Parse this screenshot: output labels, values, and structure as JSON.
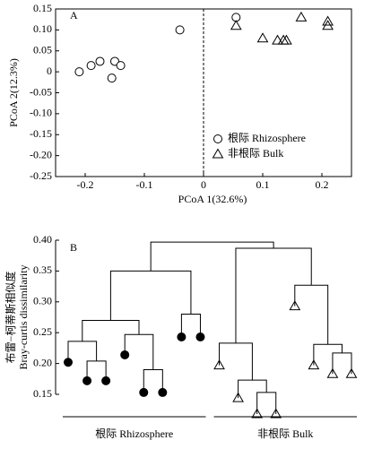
{
  "chart_data": [
    {
      "type": "scatter",
      "panel_label": "A",
      "x_label": "PCoA 1(32.6%)",
      "y_label": "PCoA 2(12.3%)",
      "xlim": [
        -0.25,
        0.25
      ],
      "ylim": [
        -0.25,
        0.15
      ],
      "xticks": [
        -0.2,
        -0.1,
        0,
        0.1,
        0.2
      ],
      "yticks": [
        0.15,
        {
          "value": 0.1,
          "label": "0.10"
        },
        0.05,
        0,
        -0.05,
        {
          "value": -0.1,
          "label": "-0.10"
        },
        -0.15,
        {
          "value": -0.2,
          "label": "-0.20"
        },
        -0.25
      ],
      "vline": 0,
      "legend": "bottom-right",
      "series": [
        {
          "name": "根际 Rhizosphere",
          "marker": "circle",
          "color": "#000000",
          "x": [
            -0.21,
            -0.19,
            -0.175,
            -0.15,
            -0.14,
            -0.155,
            -0.04,
            0.055
          ],
          "values": [
            0.0,
            0.015,
            0.025,
            0.025,
            0.015,
            -0.015,
            0.1,
            0.13
          ]
        },
        {
          "name": "非根际 Bulk",
          "marker": "triangle",
          "color": "#000000",
          "x": [
            0.055,
            0.1,
            0.125,
            0.135,
            0.14,
            0.165,
            0.21,
            0.21
          ],
          "values": [
            0.11,
            0.08,
            0.075,
            0.075,
            0.075,
            0.13,
            0.11,
            0.12
          ]
        }
      ]
    },
    {
      "type": "dendrogram",
      "panel_label": "B",
      "y_label": [
        "布雷−柯蒂斯相似度",
        "Bray-curtis dissimilarity"
      ],
      "ylim": [
        0.15,
        0.4
      ],
      "yticks": [
        {
          "value": 0.4,
          "label": "0.40"
        },
        0.35,
        {
          "value": 0.3,
          "label": "0.30"
        },
        0.25,
        {
          "value": 0.2,
          "label": "0.20"
        },
        0.15
      ],
      "groups": [
        {
          "name": "根际 Rhizosphere",
          "marker": "circle"
        },
        {
          "name": "非根际 Bulk",
          "marker": "triangle"
        }
      ],
      "leaf_groups": [
        0,
        0,
        0,
        0,
        0,
        0,
        0,
        0,
        1,
        1,
        1,
        1,
        1,
        1,
        1,
        1
      ],
      "leaf_heights": [
        0.202,
        0.172,
        0.172,
        0.214,
        0.153,
        0.153,
        0.243,
        0.243,
        0.197,
        0.144,
        0.118,
        0.118,
        0.293,
        0.197,
        0.183,
        0.183
      ],
      "merges": [
        [
          1,
          2,
          0.204
        ],
        [
          0,
          16,
          0.236
        ],
        [
          4,
          5,
          0.19
        ],
        [
          3,
          18,
          0.247
        ],
        [
          17,
          19,
          0.27
        ],
        [
          6,
          7,
          0.28
        ],
        [
          20,
          21,
          0.35
        ],
        [
          10,
          11,
          0.153
        ],
        [
          9,
          23,
          0.173
        ],
        [
          8,
          24,
          0.233
        ],
        [
          14,
          15,
          0.217
        ],
        [
          13,
          26,
          0.231
        ],
        [
          12,
          27,
          0.327
        ],
        [
          25,
          28,
          0.387
        ],
        [
          22,
          29,
          0.397
        ]
      ]
    }
  ]
}
